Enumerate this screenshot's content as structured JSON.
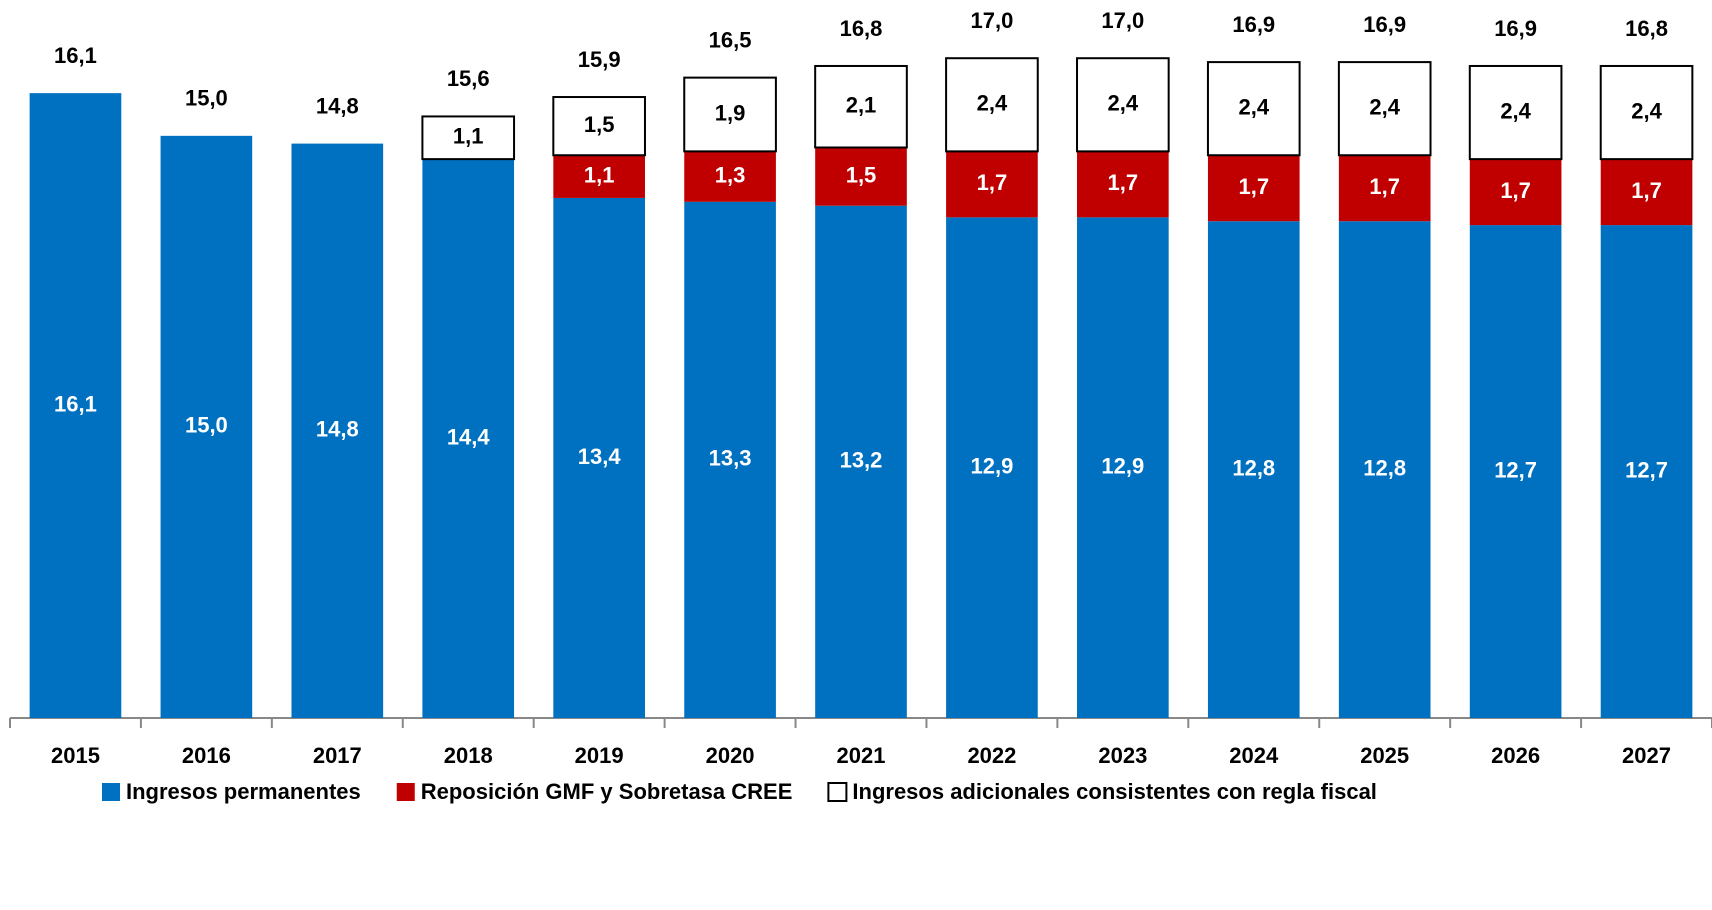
{
  "chart_data": {
    "type": "stacked_bar",
    "categories": [
      "2015",
      "2016",
      "2017",
      "2018",
      "2019",
      "2020",
      "2021",
      "2022",
      "2023",
      "2024",
      "2025",
      "2026",
      "2027"
    ],
    "series": [
      {
        "name": "Ingresos permanentes",
        "color": "#0070c0",
        "values": [
          16.1,
          15.0,
          14.8,
          14.4,
          13.4,
          13.3,
          13.2,
          12.9,
          12.9,
          12.8,
          12.8,
          12.7,
          12.7
        ],
        "value_labels": [
          "16,1",
          "15,0",
          "14,8",
          "14,4",
          "13,4",
          "13,3",
          "13,2",
          "12,9",
          "12,9",
          "12,8",
          "12,8",
          "12,7",
          "12,7"
        ]
      },
      {
        "name": "Reposición GMF y Sobretasa CREE",
        "color": "#c00000",
        "values": [
          null,
          null,
          null,
          null,
          1.1,
          1.3,
          1.5,
          1.7,
          1.7,
          1.7,
          1.7,
          1.7,
          1.7
        ],
        "value_labels": [
          null,
          null,
          null,
          null,
          "1,1",
          "1,3",
          "1,5",
          "1,7",
          "1,7",
          "1,7",
          "1,7",
          "1,7",
          "1,7"
        ]
      },
      {
        "name": "Ingresos adicionales consistentes con regla fiscal",
        "color": "#ffffff",
        "values": [
          null,
          null,
          null,
          1.1,
          1.5,
          1.9,
          2.1,
          2.4,
          2.4,
          2.4,
          2.4,
          2.4,
          2.4
        ],
        "value_labels": [
          null,
          null,
          null,
          "1,1",
          "1,5",
          "1,9",
          "2,1",
          "2,4",
          "2,4",
          "2,4",
          "2,4",
          "2,4",
          "2,4"
        ]
      }
    ],
    "totals": [
      16.1,
      15.0,
      14.8,
      15.6,
      15.9,
      16.5,
      16.8,
      17.0,
      17.0,
      16.9,
      16.9,
      16.9,
      16.8
    ],
    "total_labels": [
      "16,1",
      "15,0",
      "14,8",
      "15,6",
      "15,9",
      "16,5",
      "16,8",
      "17,0",
      "17,0",
      "16,9",
      "16,9",
      "16,9",
      "16,8"
    ],
    "ylim": [
      0,
      18.5
    ]
  }
}
